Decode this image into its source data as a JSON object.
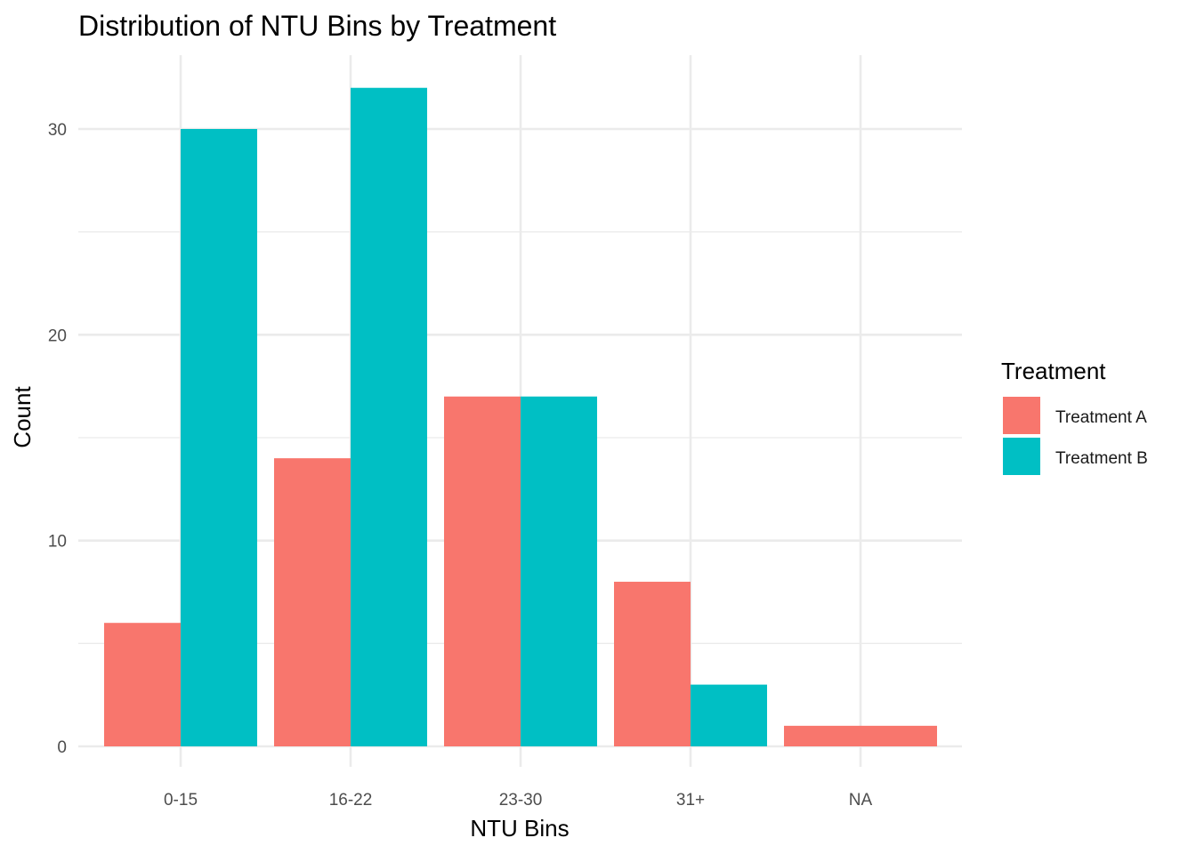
{
  "chart_data": {
    "type": "bar",
    "title": "Distribution of NTU Bins by Treatment",
    "xlabel": "NTU Bins",
    "ylabel": "Count",
    "categories": [
      "0-15",
      "16-22",
      "23-30",
      "31+",
      "NA"
    ],
    "series": [
      {
        "name": "Treatment A",
        "color": "#F8766D",
        "values": [
          6,
          14,
          17,
          8,
          1
        ]
      },
      {
        "name": "Treatment B",
        "color": "#00BFC4",
        "values": [
          30,
          32,
          17,
          3,
          null
        ]
      }
    ],
    "ylim": [
      0,
      33
    ],
    "yticks": [
      0,
      10,
      20,
      30
    ],
    "yticks_minor": [
      5,
      15,
      25
    ],
    "grid": true,
    "legend": {
      "title": "Treatment",
      "placement": "right"
    }
  }
}
